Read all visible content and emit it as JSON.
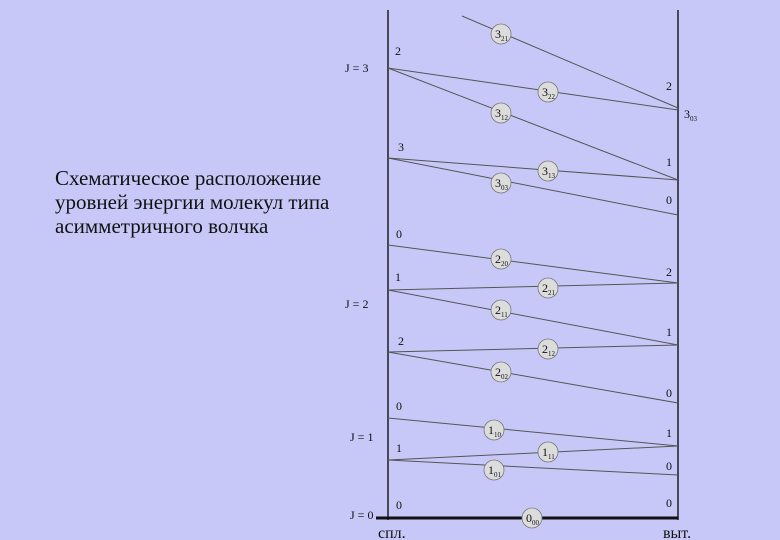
{
  "caption": {
    "line1": "Схематическое расположение",
    "line2": "уровней энергии молекул типа",
    "line3": "асимметричного волчка"
  },
  "axes": {
    "left_label": "спл.",
    "right_label": "выт."
  },
  "j_labels": [
    "J = 3",
    "J = 2",
    "J = 1",
    "J = 0"
  ],
  "left_levels": [
    "2",
    "3",
    "0",
    "1",
    "2",
    "0",
    "1",
    "0"
  ],
  "right_levels": [
    "2",
    "1",
    "0",
    "2",
    "1",
    "0",
    "1",
    "0",
    "0"
  ],
  "level_badges": [
    {
      "main": "3",
      "sub": "21"
    },
    {
      "main": "3",
      "sub": "22"
    },
    {
      "main": "3",
      "sub": "12"
    },
    {
      "main": "3",
      "sub": "13"
    },
    {
      "main": "3",
      "sub": "03"
    },
    {
      "main": "2",
      "sub": "20"
    },
    {
      "main": "2",
      "sub": "21"
    },
    {
      "main": "2",
      "sub": "11"
    },
    {
      "main": "2",
      "sub": "12"
    },
    {
      "main": "2",
      "sub": "02"
    },
    {
      "main": "1",
      "sub": "10"
    },
    {
      "main": "1",
      "sub": "11"
    },
    {
      "main": "1",
      "sub": "01"
    },
    {
      "main": "0",
      "sub": "00"
    }
  ],
  "right_badge": {
    "main": "3",
    "sub": "03"
  },
  "colors": {
    "background": "#c8c8f8",
    "line": "#555555",
    "badge_fill": "#dcdcdc"
  }
}
